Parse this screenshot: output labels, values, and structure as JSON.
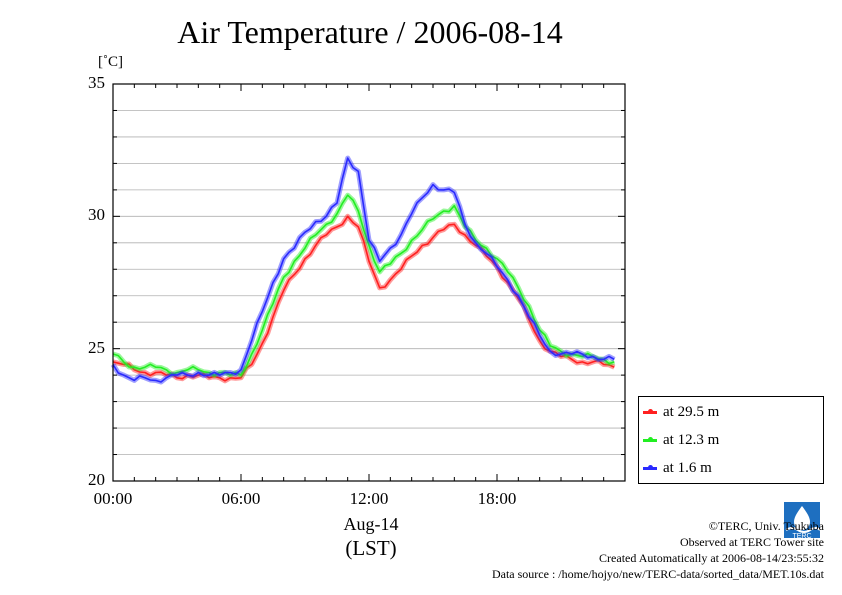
{
  "title": "Air Temperature / 2006-08-14",
  "unit": "[˚C]",
  "x_date_label": "Aug-14",
  "x_tz_label": "(LST)",
  "colors": {
    "red": "#ff2020",
    "green": "#22ee22",
    "blue": "#2a2aff",
    "grid": "#b0b0b0"
  },
  "credits": {
    "line1": "©TERC, Univ. Tsukuba",
    "line2": "Observed at TERC Tower site",
    "line3": "Created Automatically at 2006-08-14/23:55:32",
    "line4": "Data source : /home/hojyo/new/TERC-data/sorted_data/MET.10s.dat"
  },
  "logo": {
    "text": "TERC",
    "icon": "terc-logo-icon"
  },
  "chart_data": {
    "type": "line",
    "title": "Air Temperature / 2006-08-14",
    "ylabel": "[˚C]",
    "xlabel": "Aug-14 (LST)",
    "ylim": [
      20,
      35
    ],
    "xlim": [
      0,
      23.5
    ],
    "y_ticks": [
      "20",
      "25",
      "30",
      "35"
    ],
    "x_ticks": [
      "00:00",
      "06:00",
      "12:00",
      "18:00"
    ],
    "grid": true,
    "legend_position": "right-bottom",
    "x": [
      0,
      0.5,
      1,
      1.5,
      2,
      2.5,
      3,
      3.5,
      4,
      4.5,
      5,
      5.5,
      6,
      6.5,
      7,
      7.5,
      8,
      8.5,
      9,
      9.5,
      10,
      10.5,
      11,
      11.5,
      12,
      12.5,
      13,
      13.5,
      14,
      14.5,
      15,
      15.5,
      16,
      16.5,
      17,
      17.5,
      18,
      18.5,
      19,
      19.5,
      20,
      20.5,
      21,
      21.5,
      22,
      22.5,
      23,
      23.5
    ],
    "series": [
      {
        "name": "at 29.5 m",
        "color": "#ff2020",
        "values": [
          24.5,
          24.4,
          24.2,
          24.1,
          24.1,
          24.0,
          23.9,
          24.0,
          24.0,
          23.9,
          23.9,
          23.9,
          23.9,
          24.4,
          25.2,
          26.2,
          27.2,
          27.8,
          28.4,
          28.9,
          29.3,
          29.6,
          30.0,
          29.6,
          28.3,
          27.3,
          27.6,
          28.0,
          28.5,
          28.9,
          29.2,
          29.5,
          29.7,
          29.3,
          28.9,
          28.5,
          28.1,
          27.5,
          26.9,
          26.1,
          25.3,
          24.9,
          24.7,
          24.6,
          24.5,
          24.5,
          24.4,
          24.3
        ]
      },
      {
        "name": "at 12.3 m",
        "color": "#22ee22",
        "values": [
          24.8,
          24.5,
          24.3,
          24.3,
          24.3,
          24.2,
          24.1,
          24.2,
          24.2,
          24.1,
          24.1,
          24.0,
          24.0,
          24.8,
          25.7,
          26.7,
          27.7,
          28.3,
          28.8,
          29.3,
          29.7,
          30.1,
          30.8,
          30.2,
          28.9,
          27.9,
          28.2,
          28.6,
          29.1,
          29.5,
          29.9,
          30.2,
          30.4,
          29.6,
          29.1,
          28.8,
          28.4,
          27.9,
          27.3,
          26.6,
          25.7,
          25.1,
          24.9,
          24.8,
          24.7,
          24.7,
          24.6,
          24.5
        ]
      },
      {
        "name": "at 1.6 m",
        "color": "#2a2aff",
        "values": [
          24.4,
          24.0,
          23.8,
          23.9,
          23.8,
          23.9,
          24.0,
          24.0,
          24.1,
          24.0,
          24.0,
          24.1,
          24.2,
          25.3,
          26.4,
          27.5,
          28.4,
          28.8,
          29.4,
          29.8,
          30.0,
          30.5,
          32.2,
          31.7,
          29.1,
          28.3,
          28.8,
          29.3,
          30.1,
          30.7,
          31.2,
          31.0,
          30.9,
          29.7,
          29.0,
          28.6,
          28.1,
          27.6,
          27.0,
          26.2,
          25.5,
          24.9,
          24.8,
          24.8,
          24.8,
          24.7,
          24.6,
          24.6
        ]
      }
    ]
  }
}
